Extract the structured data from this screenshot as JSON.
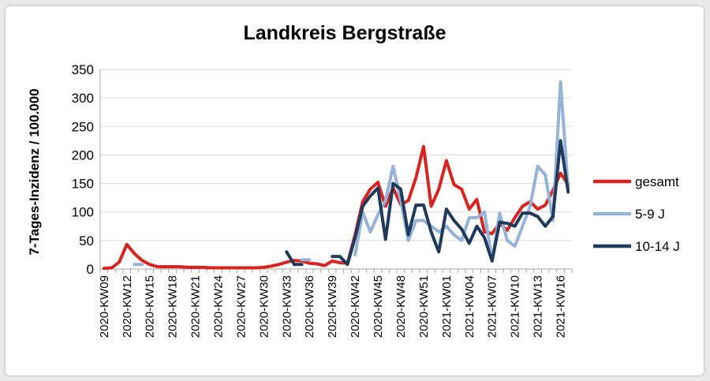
{
  "chart_data": {
    "type": "line",
    "title": "Landkreis Bergstraße",
    "xlabel": "",
    "ylabel": "7-Tages-Inzidenz / 100.000",
    "ylim": [
      0,
      350
    ],
    "yticks": [
      0,
      50,
      100,
      150,
      200,
      250,
      300,
      350
    ],
    "grid": "horizontal",
    "legend": "right",
    "x": [
      "2020-KW09",
      "2020-KW10",
      "2020-KW11",
      "2020-KW12",
      "2020-KW13",
      "2020-KW14",
      "2020-KW15",
      "2020-KW16",
      "2020-KW17",
      "2020-KW18",
      "2020-KW19",
      "2020-KW20",
      "2020-KW21",
      "2020-KW22",
      "2020-KW23",
      "2020-KW24",
      "2020-KW25",
      "2020-KW26",
      "2020-KW27",
      "2020-KW28",
      "2020-KW29",
      "2020-KW30",
      "2020-KW31",
      "2020-KW32",
      "2020-KW33",
      "2020-KW34",
      "2020-KW35",
      "2020-KW36",
      "2020-KW37",
      "2020-KW38",
      "2020-KW39",
      "2020-KW40",
      "2020-KW41",
      "2020-KW42",
      "2020-KW43",
      "2020-KW44",
      "2020-KW45",
      "2020-KW46",
      "2020-KW47",
      "2020-KW48",
      "2020-KW49",
      "2020-KW50",
      "2020-KW51",
      "2020-KW52",
      "2020-KW53",
      "2021-KW01",
      "2021-KW02",
      "2021-KW03",
      "2021-KW04",
      "2021-KW05",
      "2021-KW06",
      "2021-KW07",
      "2021-KW08",
      "2021-KW09",
      "2021-KW10",
      "2021-KW11",
      "2021-KW12",
      "2021-KW13",
      "2021-KW14",
      "2021-KW15",
      "2021-KW16",
      "2021-KW17"
    ],
    "xtick_labels": [
      "2020-KW09",
      "2020-KW12",
      "2020-KW15",
      "2020-KW18",
      "2020-KW21",
      "2020-KW24",
      "2020-KW27",
      "2020-KW30",
      "2020-KW33",
      "2020-KW36",
      "2020-KW39",
      "2020-KW42",
      "2020-KW45",
      "2020-KW48",
      "2020-KW51",
      "2021-KW01",
      "2021-KW04",
      "2021-KW07",
      "2021-KW10",
      "2021-KW13",
      "2021-KW16"
    ],
    "series": [
      {
        "name": "gesamt",
        "color": "#d9231e",
        "values": [
          1,
          2,
          12,
          43,
          27,
          15,
          8,
          4,
          4,
          4,
          4,
          3,
          3,
          3,
          2,
          2,
          2,
          2,
          2,
          2,
          2,
          3,
          5,
          8,
          12,
          15,
          14,
          10,
          9,
          6,
          14,
          11,
          10,
          60,
          118,
          140,
          152,
          110,
          142,
          113,
          120,
          160,
          215,
          110,
          140,
          190,
          148,
          140,
          105,
          122,
          65,
          62,
          80,
          68,
          90,
          110,
          118,
          105,
          112,
          138,
          168,
          148
        ]
      },
      {
        "name": "5-9 J",
        "color": "#95b3d7",
        "values": [
          null,
          null,
          null,
          null,
          8,
          8,
          null,
          null,
          null,
          null,
          null,
          null,
          null,
          null,
          null,
          null,
          null,
          null,
          null,
          null,
          null,
          null,
          null,
          null,
          null,
          null,
          16,
          16,
          null,
          null,
          null,
          null,
          null,
          25,
          100,
          65,
          95,
          120,
          180,
          120,
          50,
          85,
          85,
          75,
          65,
          75,
          60,
          50,
          90,
          90,
          100,
          15,
          98,
          50,
          40,
          75,
          110,
          180,
          165,
          85,
          328,
          140
        ]
      },
      {
        "name": "10-14 J",
        "color": "#1f3a5a",
        "values": [
          null,
          null,
          null,
          null,
          null,
          null,
          null,
          null,
          null,
          null,
          null,
          null,
          null,
          null,
          null,
          null,
          null,
          null,
          null,
          null,
          null,
          null,
          null,
          null,
          30,
          8,
          8,
          null,
          null,
          null,
          22,
          22,
          8,
          55,
          110,
          128,
          142,
          52,
          150,
          140,
          60,
          112,
          112,
          65,
          30,
          105,
          85,
          70,
          45,
          75,
          55,
          14,
          82,
          80,
          75,
          98,
          98,
          92,
          75,
          92,
          225,
          135
        ]
      }
    ]
  }
}
